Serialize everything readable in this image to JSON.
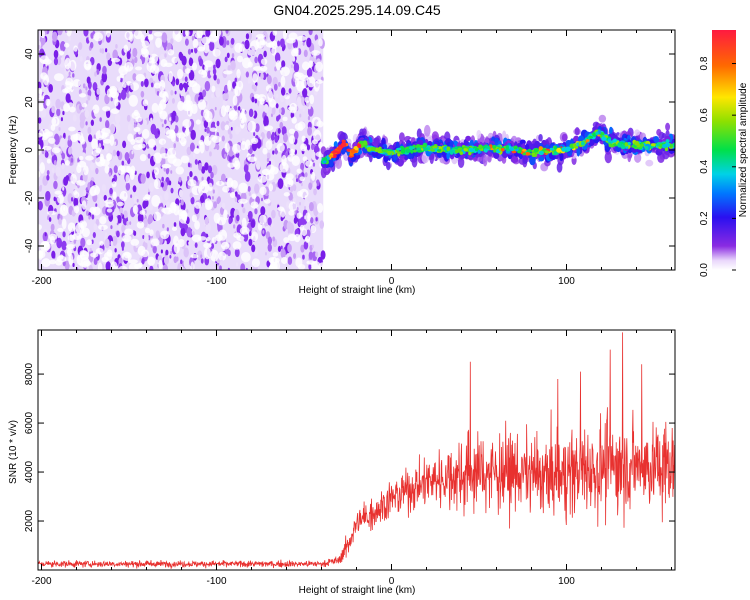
{
  "title": "GN04.2025.295.14.09.C45",
  "chart_data": [
    {
      "type": "heatmap",
      "title": "GN04.2025.295.14.09.C45",
      "xlabel": "Height of straight line (km)",
      "ylabel": "Frequency (Hz)",
      "xlim": [
        -202,
        162
      ],
      "ylim": [
        -50,
        50
      ],
      "xticks": [
        -200,
        -100,
        0,
        100
      ],
      "yticks": [
        -40,
        -20,
        0,
        20,
        40
      ],
      "colorbar": {
        "label": "Normalized spectral amplitude",
        "range": [
          0.0,
          0.93
        ],
        "ticks": [
          0.0,
          0.2,
          0.4,
          0.6,
          0.8
        ]
      },
      "regions": [
        {
          "name": "noise",
          "x_range": [
            -202,
            -39
          ],
          "y_range": [
            -50,
            50
          ],
          "amplitude_range": [
            0.0,
            0.1
          ]
        },
        {
          "name": "signal-band",
          "x_range": [
            -39,
            162
          ],
          "y_range": [
            -10,
            10
          ],
          "center_hz": 0,
          "peak_amplitude": 0.93
        }
      ]
    },
    {
      "type": "line",
      "xlabel": "Height of straight line (km)",
      "ylabel": "SNR (10 * v/v)",
      "xlim": [
        -202,
        162
      ],
      "ylim": [
        0,
        9800
      ],
      "xticks": [
        -200,
        -100,
        0,
        100
      ],
      "yticks": [
        2000,
        4000,
        6000,
        8000
      ],
      "series": [
        {
          "name": "SNR",
          "color": "#e8312f",
          "envelope": {
            "x": [
              -202,
              -40,
              -30,
              -25,
              -20,
              -10,
              0,
              10,
              20,
              30,
              40,
              50,
              60,
              70,
              80,
              90,
              100,
              110,
              120,
              130,
              140,
              150,
              162
            ],
            "mean": [
              250,
              250,
              400,
              1000,
              1900,
              2400,
              2900,
              3300,
              3600,
              3800,
              3900,
              4000,
              4000,
              4000,
              3900,
              3800,
              3900,
              4100,
              4200,
              4300,
              4300,
              4200,
              4200
            ],
            "spread": [
              150,
              150,
              200,
              500,
              700,
              800,
              900,
              1000,
              1200,
              1500,
              1700,
              1800,
              1800,
              1800,
              1800,
              1800,
              1900,
              2000,
              2100,
              2200,
              2200,
              2100,
              2100
            ]
          },
          "peaks": [
            {
              "x": 45,
              "y": 8500
            },
            {
              "x": 95,
              "y": 7800
            },
            {
              "x": 108,
              "y": 8100
            },
            {
              "x": 125,
              "y": 9000
            },
            {
              "x": 132,
              "y": 9700
            },
            {
              "x": 143,
              "y": 8400
            }
          ]
        }
      ]
    }
  ],
  "colors": {
    "line": "#e8312f",
    "noise": "#7a1ee8",
    "axis": "#000000"
  }
}
